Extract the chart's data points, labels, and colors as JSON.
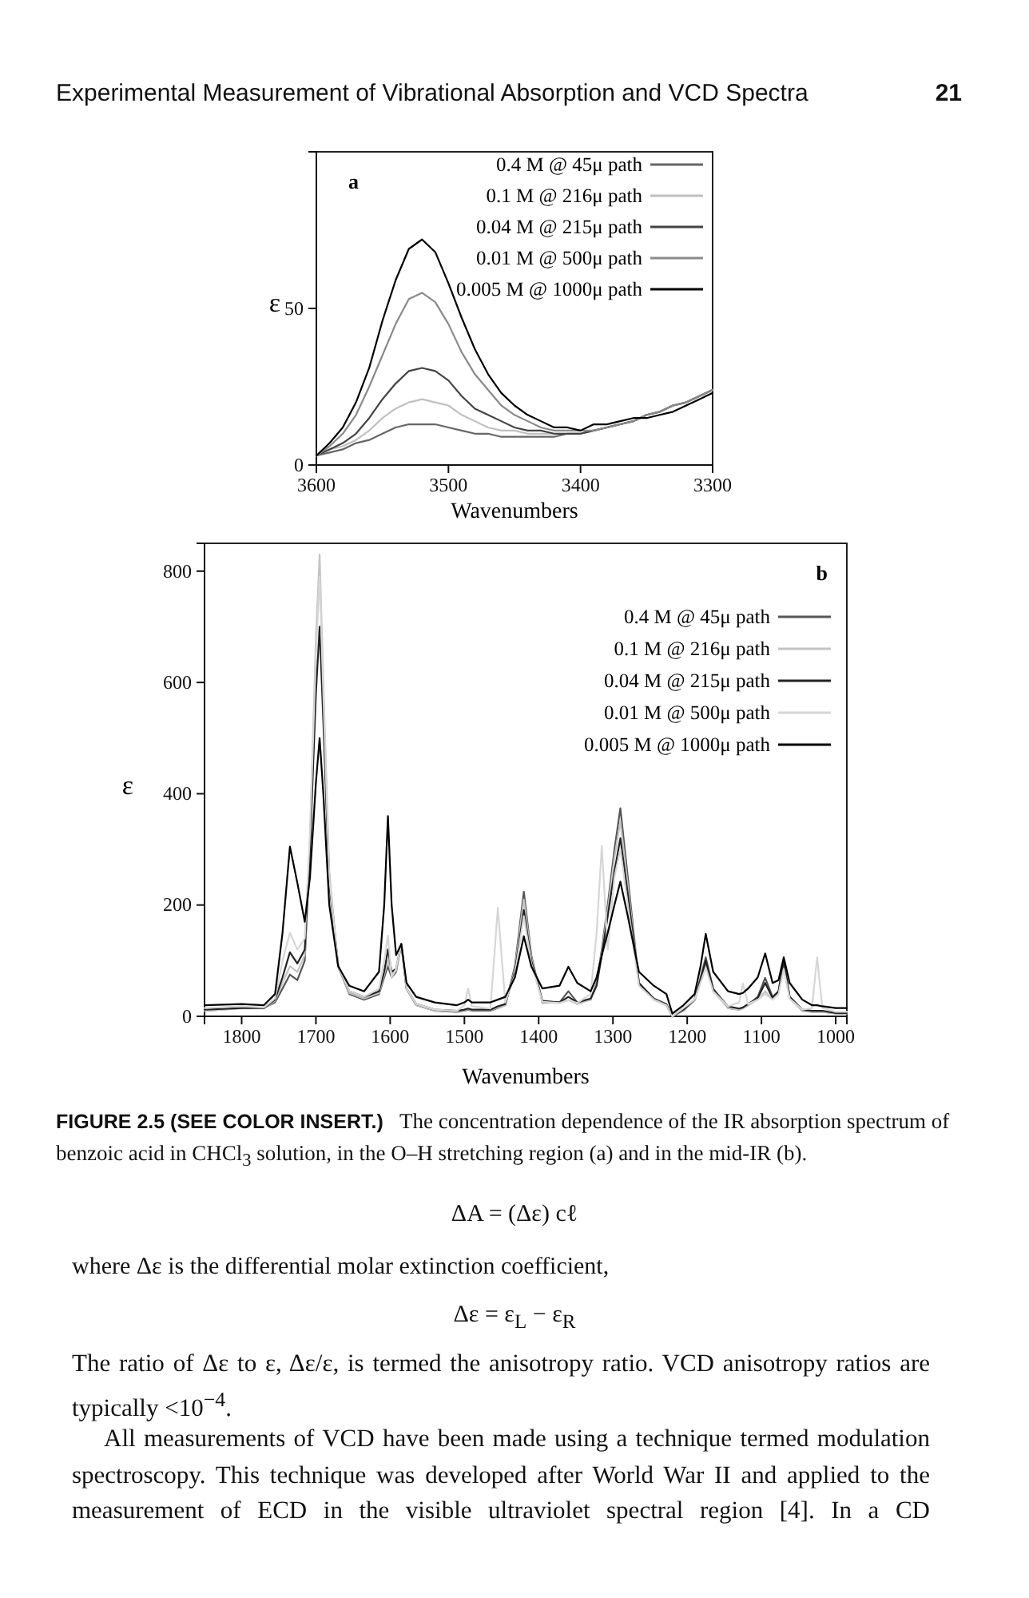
{
  "chart_data": [
    {
      "type": "line",
      "title": "a",
      "xlabel": "Wavenumbers",
      "ylabel": "ε",
      "xlim": [
        3600,
        3300
      ],
      "ylim": [
        0,
        100
      ],
      "xticks": [
        3600,
        3500,
        3400,
        3300
      ],
      "yticks": [
        0,
        50
      ],
      "grid": false,
      "legend": "top right",
      "marker": "none",
      "line_style": "solid",
      "annotations": [
        "Experimental Measurement of Vibrational Absorption and VCD Spectra",
        "21"
      ],
      "x": [
        3600,
        3590,
        3580,
        3570,
        3560,
        3550,
        3540,
        3530,
        3520,
        3510,
        3500,
        3490,
        3480,
        3470,
        3460,
        3450,
        3440,
        3430,
        3420,
        3410,
        3400,
        3390,
        3380,
        3370,
        3360,
        3350,
        3340,
        3330,
        3320,
        3310,
        3300
      ],
      "series": [
        {
          "name": "0.4 M @ 45μ path",
          "color": "#666666",
          "values": [
            3,
            4,
            5,
            7,
            8,
            10,
            12,
            13,
            13,
            13,
            12,
            11,
            10,
            10,
            9,
            9,
            9,
            9,
            9,
            10,
            10,
            11,
            12,
            13,
            14,
            16,
            17,
            19,
            20,
            22,
            24
          ]
        },
        {
          "name": "0.1 M @ 216μ path",
          "color": "#c0c0c0",
          "values": [
            3,
            5,
            6,
            8,
            11,
            15,
            18,
            20,
            21,
            20,
            19,
            16,
            14,
            12,
            11,
            11,
            10,
            10,
            10,
            10,
            10,
            11,
            12,
            13,
            14,
            16,
            17,
            19,
            20,
            22,
            24
          ]
        },
        {
          "name": "0.04 M @ 215μ path",
          "color": "#444444",
          "values": [
            3,
            5,
            7,
            10,
            15,
            21,
            26,
            30,
            31,
            30,
            27,
            22,
            18,
            16,
            14,
            12,
            11,
            11,
            10,
            10,
            10,
            11,
            12,
            13,
            14,
            16,
            17,
            19,
            20,
            22,
            24
          ]
        },
        {
          "name": "0.01 M @ 500μ path",
          "color": "#8a8a8a",
          "values": [
            3,
            6,
            10,
            16,
            25,
            35,
            45,
            53,
            55,
            52,
            45,
            36,
            29,
            24,
            19,
            16,
            14,
            12,
            11,
            11,
            11,
            11,
            12,
            13,
            14,
            16,
            17,
            19,
            20,
            22,
            24
          ]
        },
        {
          "name": "0.005 M @ 1000μ path",
          "color": "#000000",
          "values": [
            3,
            7,
            12,
            20,
            31,
            46,
            59,
            69,
            72,
            68,
            58,
            47,
            37,
            29,
            23,
            19,
            16,
            14,
            12,
            12,
            11,
            13,
            13,
            14,
            15,
            15,
            16,
            17,
            19,
            21,
            23
          ]
        }
      ]
    },
    {
      "type": "line",
      "title": "b",
      "xlabel": "Wavenumbers",
      "ylabel": "ε",
      "xlim": [
        1850,
        985
      ],
      "ylim": [
        0,
        850
      ],
      "xticks": [
        1800,
        1700,
        1600,
        1500,
        1400,
        1300,
        1200,
        1100,
        1000
      ],
      "yticks": [
        0,
        200,
        400,
        600,
        800
      ],
      "grid": false,
      "legend": "top right",
      "marker": "none",
      "line_style": "solid",
      "annotations": [
        "FIGURE 2.5 (SEE COLOR INSERT.)",
        "The concentration dependence of the IR absorption spectrum of benzoic acid in CHCl$_{3}$ solution, in the O–H stretching region (a) and in the mid-IR (b).",
        "ΔA = (Δε) cℓ",
        "where Δε is the differential molar extinction coefficient,",
        "Δε = ε$_{L}$ − ε$_{R}$",
        "The ratio of Δε to ε, Δε/ε, is termed the anisotropy ratio. VCD anisotropy ratios are typically <10$^{−4}$.",
        "All measurements of VCD have been made using a technique termed modulation spectroscopy. This technique was developed after World War II and applied to the measurement of ECD in the visible ultraviolet spectral region [4]. In a CD"
      ],
      "x": [
        1850,
        1800,
        1770,
        1755,
        1745,
        1735,
        1725,
        1715,
        1708,
        1700,
        1695,
        1690,
        1682,
        1670,
        1655,
        1635,
        1615,
        1608,
        1603,
        1598,
        1592,
        1585,
        1578,
        1565,
        1540,
        1510,
        1500,
        1495,
        1490,
        1465,
        1455,
        1445,
        1432,
        1420,
        1410,
        1395,
        1372,
        1360,
        1348,
        1330,
        1322,
        1315,
        1307,
        1298,
        1290,
        1280,
        1265,
        1245,
        1228,
        1220,
        1205,
        1190,
        1182,
        1175,
        1165,
        1145,
        1130,
        1125,
        1118,
        1105,
        1095,
        1085,
        1077,
        1070,
        1062,
        1045,
        1032,
        1025,
        1018,
        1000,
        985
      ],
      "series": [
        {
          "name": "0.4 M @ 45μ path",
          "color": "#555555",
          "values": [
            10,
            15,
            15,
            25,
            50,
            75,
            65,
            100,
            300,
            640,
            null,
            550,
            250,
            90,
            40,
            30,
            40,
            70,
            90,
            70,
            80,
            130,
            50,
            20,
            10,
            8,
            10,
            12,
            10,
            10,
            15,
            20,
            90,
            224,
            110,
            25,
            25,
            45,
            25,
            30,
            60,
            120,
            200,
            300,
            374,
            250,
            60,
            30,
            20,
            0,
            10,
            30,
            70,
            106,
            50,
            15,
            12,
            15,
            20,
            35,
            69,
            35,
            45,
            97,
            35,
            10,
            8,
            8,
            8,
            5,
            5
          ]
        },
        {
          "name": "0.1 M @ 216μ path",
          "color": "#c4c4c4",
          "values": [
            10,
            14,
            14,
            28,
            60,
            90,
            80,
            110,
            320,
            680,
            830,
            600,
            260,
            90,
            42,
            32,
            42,
            75,
            100,
            75,
            82,
            130,
            50,
            20,
            10,
            9,
            11,
            13,
            11,
            11,
            16,
            20,
            85,
            210,
            105,
            26,
            24,
            29,
            22,
            30,
            58,
            115,
            190,
            285,
            350,
            235,
            58,
            30,
            20,
            0,
            10,
            28,
            62,
            95,
            45,
            15,
            12,
            14,
            20,
            30,
            45,
            30,
            42,
            90,
            32,
            10,
            8,
            8,
            8,
            5,
            5
          ]
        },
        {
          "name": "0.04 M @ 215μ path",
          "color": "#222222",
          "values": [
            12,
            15,
            15,
            30,
            70,
            115,
            95,
            120,
            300,
            580,
            700,
            530,
            240,
            90,
            45,
            35,
            45,
            80,
            120,
            80,
            85,
            130,
            50,
            22,
            12,
            10,
            12,
            14,
            12,
            12,
            18,
            22,
            80,
            191,
            100,
            28,
            25,
            35,
            25,
            32,
            55,
            110,
            180,
            260,
            320,
            220,
            60,
            32,
            22,
            0,
            12,
            30,
            65,
            100,
            48,
            18,
            14,
            16,
            22,
            33,
            60,
            33,
            45,
            100,
            35,
            12,
            10,
            10,
            10,
            6,
            6
          ]
        },
        {
          "name": "0.01 M @ 500μ path",
          "color": "#d6d6d6",
          "values": [
            15,
            18,
            16,
            32,
            100,
            150,
            120,
            140,
            330,
            650,
            790,
            580,
            250,
            90,
            45,
            35,
            50,
            100,
            145,
            70,
            85,
            130,
            50,
            22,
            12,
            10,
            20,
            50,
            18,
            14,
            195,
            25,
            75,
            180,
            95,
            26,
            24,
            29,
            24,
            40,
            150,
            306,
            120,
            250,
            300,
            200,
            55,
            30,
            20,
            0,
            15,
            30,
            60,
            87,
            45,
            18,
            25,
            59,
            22,
            30,
            40,
            30,
            40,
            85,
            32,
            12,
            15,
            106,
            15,
            8,
            8
          ]
        },
        {
          "name": "0.005 M @ 1000μ path",
          "color": "#000000",
          "values": [
            20,
            22,
            20,
            40,
            150,
            305,
            240,
            170,
            250,
            420,
            500,
            400,
            200,
            90,
            55,
            45,
            80,
            200,
            360,
            200,
            110,
            130,
            60,
            35,
            25,
            20,
            25,
            30,
            25,
            25,
            30,
            35,
            70,
            144,
            90,
            50,
            55,
            89,
            60,
            45,
            70,
            110,
            150,
            200,
            242,
            180,
            80,
            55,
            40,
            5,
            20,
            40,
            90,
            148,
            80,
            45,
            40,
            42,
            50,
            70,
            113,
            60,
            65,
            106,
            60,
            30,
            20,
            20,
            18,
            15,
            15
          ]
        }
      ]
    }
  ]
}
